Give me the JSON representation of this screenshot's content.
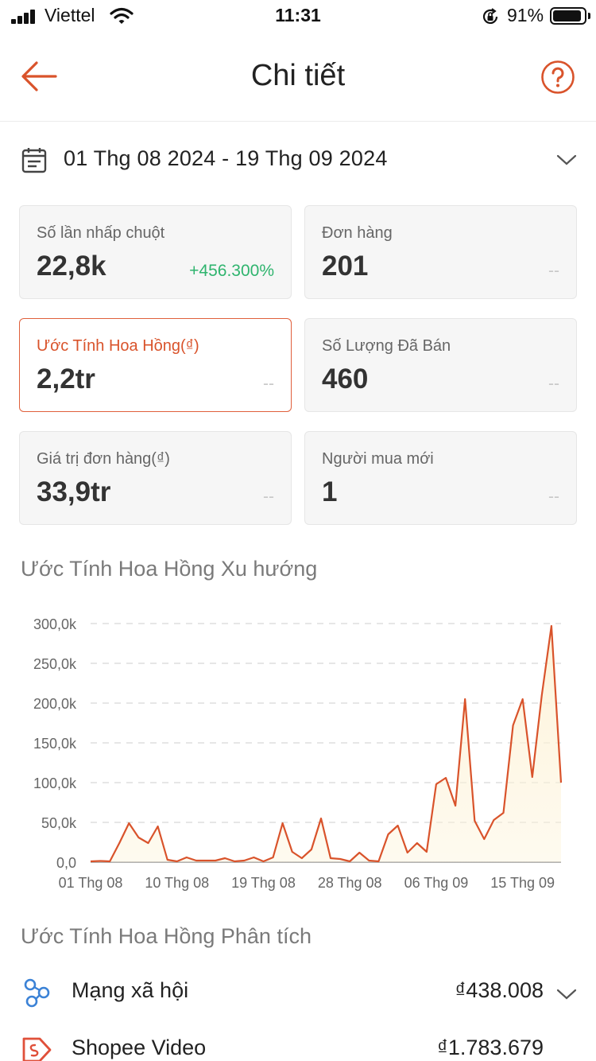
{
  "status_bar": {
    "carrier": "Viettel",
    "time": "11:31",
    "battery_percent": "91%",
    "battery_level": 0.91
  },
  "header": {
    "title": "Chi tiết"
  },
  "date_filter": {
    "range": "01 Thg 08 2024 - 19 Thg 09 2024"
  },
  "metrics": [
    {
      "label": "Số lần nhấp chuột",
      "value": "22,8k",
      "change": "+456.300%"
    },
    {
      "label": "Đơn hàng",
      "value": "201",
      "change": "--"
    },
    {
      "label": "Ước Tính Hoa Hồng(₫)",
      "value": "2,2tr",
      "change": "--",
      "selected": true
    },
    {
      "label": "Số Lượng Đã Bán",
      "value": "460",
      "change": "--"
    },
    {
      "label": "Giá trị đơn hàng(₫)",
      "value": "33,9tr",
      "change": "--"
    },
    {
      "label": "Người mua mới",
      "value": "1",
      "change": "--"
    }
  ],
  "trend": {
    "title": "Ước Tính Hoa Hồng Xu hướng"
  },
  "chart_data": {
    "type": "line",
    "title": "Ước Tính Hoa Hồng Xu hướng",
    "xlabel": "",
    "ylabel": "",
    "ylim": [
      0,
      300000
    ],
    "yticks": [
      {
        "value": 0,
        "label": "0,0"
      },
      {
        "value": 50000,
        "label": "50,0k"
      },
      {
        "value": 100000,
        "label": "100,0k"
      },
      {
        "value": 150000,
        "label": "150,0k"
      },
      {
        "value": 200000,
        "label": "200,0k"
      },
      {
        "value": 250000,
        "label": "250,0k"
      },
      {
        "value": 300000,
        "label": "300,0k"
      }
    ],
    "xticks": [
      {
        "index": 0,
        "label": "01 Thg 08"
      },
      {
        "index": 9,
        "label": "10 Thg 08"
      },
      {
        "index": 18,
        "label": "19 Thg 08"
      },
      {
        "index": 27,
        "label": "28 Thg 08"
      },
      {
        "index": 36,
        "label": "06 Thg 09"
      },
      {
        "index": 45,
        "label": "15 Thg 09"
      }
    ],
    "grid": true,
    "legend": "none",
    "color": "#d9532b",
    "fill_color": "#fdf3d8",
    "x": [
      "01/08",
      "02/08",
      "03/08",
      "04/08",
      "05/08",
      "06/08",
      "07/08",
      "08/08",
      "09/08",
      "10/08",
      "11/08",
      "12/08",
      "13/08",
      "14/08",
      "15/08",
      "16/08",
      "17/08",
      "18/08",
      "19/08",
      "20/08",
      "21/08",
      "22/08",
      "23/08",
      "24/08",
      "25/08",
      "26/08",
      "27/08",
      "28/08",
      "29/08",
      "30/08",
      "31/08",
      "01/09",
      "02/09",
      "03/09",
      "04/09",
      "05/09",
      "06/09",
      "07/09",
      "08/09",
      "09/09",
      "10/09",
      "11/09",
      "12/09",
      "13/09",
      "14/09",
      "15/09",
      "16/09",
      "17/09",
      "18/09",
      "19/09"
    ],
    "values": [
      1000,
      1500,
      1000,
      24000,
      49000,
      31000,
      24000,
      45000,
      3000,
      1000,
      6000,
      2000,
      2000,
      2000,
      5000,
      1000,
      2000,
      6000,
      1000,
      6000,
      49000,
      13000,
      5000,
      16000,
      55000,
      5000,
      4000,
      1000,
      12000,
      2000,
      1000,
      35000,
      46000,
      12000,
      24000,
      13000,
      98000,
      106000,
      71000,
      205000,
      52000,
      29000,
      53000,
      62000,
      172000,
      205000,
      107000,
      210000,
      297000,
      100000
    ]
  },
  "analysis": {
    "title": "Ước Tính Hoa Hồng Phân tích",
    "rows": [
      {
        "label": "Mạng xã hội",
        "value": "₫438.008",
        "icon": "social-network-icon"
      },
      {
        "label": "Shopee Video",
        "value": "₫1.783.679",
        "icon": "shopee-video-icon"
      }
    ]
  },
  "colors": {
    "accent": "#d9532b",
    "positive": "#2fb46e",
    "chart_fill": "#fdf3d8"
  }
}
